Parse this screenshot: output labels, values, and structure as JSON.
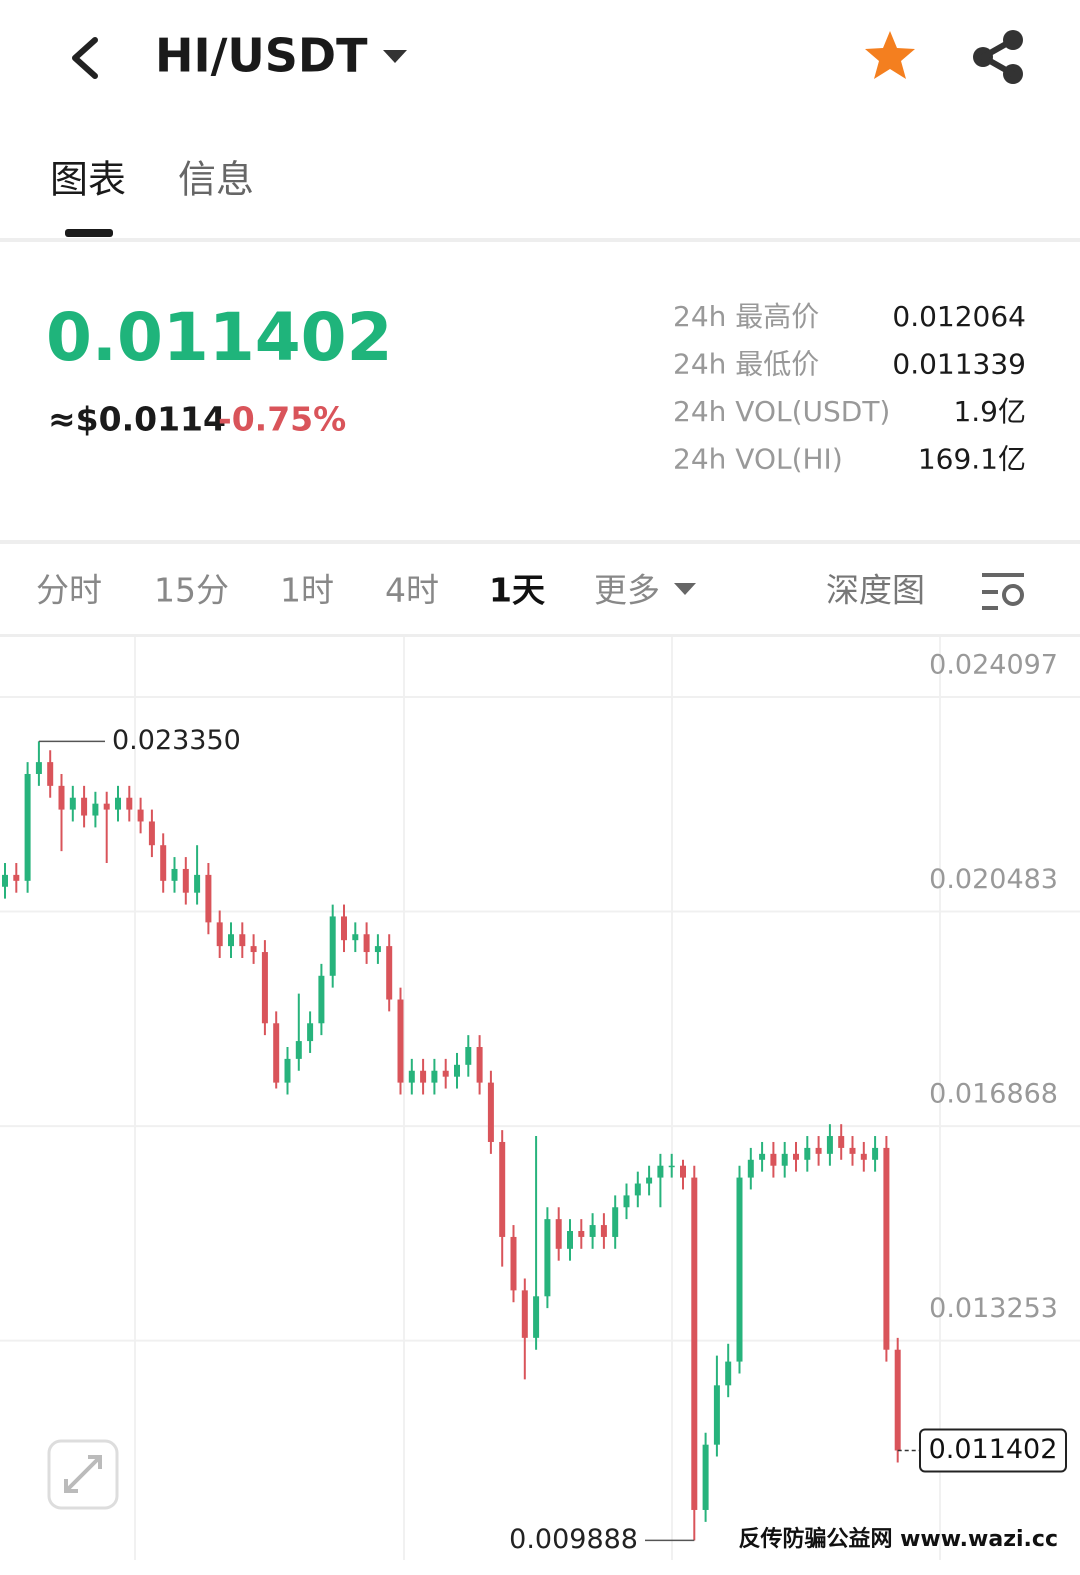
{
  "header": {
    "pair": "HI/USDT"
  },
  "tabs": [
    "图表",
    "信息"
  ],
  "price": {
    "last": "0.011402",
    "usd": "≈$0.0114",
    "change": "-0.75%"
  },
  "stats": [
    {
      "label": "24h 最高价",
      "value": "0.012064"
    },
    {
      "label": "24h 最低价",
      "value": "0.011339"
    },
    {
      "label": "24h VOL(USDT)",
      "value": "1.9亿"
    },
    {
      "label": "24h VOL(HI)",
      "value": "169.1亿"
    }
  ],
  "intervals": [
    "分时",
    "15分",
    "1时",
    "4时",
    "1天",
    "更多"
  ],
  "depth": "深度图",
  "watermark": "反传防骗公益网 www.wazi.cc",
  "chart_data": {
    "type": "candlestick",
    "open": [
      0.0209,
      0.0211,
      0.021,
      0.0228,
      0.023,
      0.0226,
      0.0222,
      0.0224,
      0.0221,
      0.0223,
      0.0222,
      0.0224,
      0.0222,
      0.022,
      0.0216,
      0.021,
      0.0212,
      0.0208,
      0.0211,
      0.0203,
      0.0199,
      0.0201,
      0.0199,
      0.0198,
      0.0186,
      0.0176,
      0.018,
      0.0183,
      0.0186,
      0.0194,
      0.0204,
      0.02,
      0.0201,
      0.0198,
      0.0199,
      0.019,
      0.0176,
      0.0178,
      0.0176,
      0.0178,
      0.0177,
      0.0179,
      0.0182,
      0.0176,
      0.0166,
      0.015,
      0.0141,
      0.0133,
      0.014,
      0.0153,
      0.0148,
      0.0151,
      0.015,
      0.0152,
      0.015,
      0.0155,
      0.0157,
      0.0159,
      0.016,
      0.0162,
      0.0162,
      0.016,
      0.0104,
      0.0115,
      0.0125,
      0.0129,
      0.016,
      0.0163,
      0.0164,
      0.0162,
      0.0164,
      0.0163,
      0.0165,
      0.0164,
      0.0167,
      0.0165,
      0.0164,
      0.0163,
      0.0165,
      0.0131
    ],
    "high": [
      0.0213,
      0.0213,
      0.023,
      0.02335,
      0.0232,
      0.0228,
      0.0226,
      0.0226,
      0.0225,
      0.0225,
      0.0226,
      0.0226,
      0.0224,
      0.0222,
      0.0218,
      0.0214,
      0.0214,
      0.0216,
      0.0213,
      0.0205,
      0.0203,
      0.0203,
      0.0201,
      0.02,
      0.0188,
      0.0182,
      0.0191,
      0.0188,
      0.0196,
      0.0206,
      0.0206,
      0.0203,
      0.0203,
      0.0201,
      0.0201,
      0.0192,
      0.018,
      0.018,
      0.018,
      0.018,
      0.0181,
      0.0184,
      0.0184,
      0.0178,
      0.0168,
      0.0152,
      0.0143,
      0.0167,
      0.0155,
      0.0155,
      0.0153,
      0.0153,
      0.0154,
      0.0154,
      0.0157,
      0.0159,
      0.0161,
      0.0162,
      0.0164,
      0.0164,
      0.0163,
      0.0162,
      0.0117,
      0.013,
      0.0132,
      0.0162,
      0.0165,
      0.0166,
      0.0166,
      0.0166,
      0.0166,
      0.0167,
      0.0167,
      0.0169,
      0.0169,
      0.0167,
      0.0166,
      0.0167,
      0.0167,
      0.0133
    ],
    "low": [
      0.0207,
      0.0208,
      0.0208,
      0.0226,
      0.0224,
      0.0215,
      0.022,
      0.0219,
      0.0219,
      0.0213,
      0.022,
      0.022,
      0.0218,
      0.0214,
      0.0208,
      0.0208,
      0.0206,
      0.0206,
      0.0201,
      0.0197,
      0.0197,
      0.0197,
      0.0196,
      0.0184,
      0.0175,
      0.0174,
      0.0178,
      0.0181,
      0.0184,
      0.0192,
      0.0198,
      0.0198,
      0.0196,
      0.0196,
      0.0188,
      0.0174,
      0.0174,
      0.0174,
      0.0174,
      0.0175,
      0.0175,
      0.0177,
      0.0174,
      0.0164,
      0.0145,
      0.0139,
      0.0126,
      0.0131,
      0.0138,
      0.0146,
      0.0146,
      0.0148,
      0.0148,
      0.0148,
      0.0148,
      0.0153,
      0.0155,
      0.0157,
      0.0155,
      0.016,
      0.0158,
      0.009888,
      0.0102,
      0.0113,
      0.0123,
      0.0127,
      0.0158,
      0.0161,
      0.016,
      0.016,
      0.0161,
      0.0161,
      0.0162,
      0.0162,
      0.0163,
      0.0162,
      0.0161,
      0.0161,
      0.0129,
      0.0112
    ],
    "close": [
      0.0211,
      0.021,
      0.0228,
      0.023,
      0.0226,
      0.0222,
      0.0224,
      0.0221,
      0.0223,
      0.0222,
      0.0224,
      0.0222,
      0.022,
      0.0216,
      0.021,
      0.0212,
      0.0208,
      0.0211,
      0.0203,
      0.0199,
      0.0201,
      0.0199,
      0.0198,
      0.0186,
      0.0176,
      0.018,
      0.0183,
      0.0186,
      0.0194,
      0.0204,
      0.02,
      0.0201,
      0.0198,
      0.0199,
      0.019,
      0.0176,
      0.0178,
      0.0176,
      0.0178,
      0.0177,
      0.0179,
      0.0182,
      0.0176,
      0.0166,
      0.015,
      0.0141,
      0.0133,
      0.014,
      0.0153,
      0.0148,
      0.0151,
      0.015,
      0.0152,
      0.015,
      0.0155,
      0.0157,
      0.0159,
      0.016,
      0.0162,
      0.0162,
      0.016,
      0.0104,
      0.0115,
      0.0125,
      0.0129,
      0.016,
      0.0163,
      0.0164,
      0.0162,
      0.0164,
      0.0163,
      0.0165,
      0.0164,
      0.0167,
      0.0165,
      0.0164,
      0.0163,
      0.0165,
      0.0131,
      0.011402
    ],
    "ylim": [
      0.009557,
      0.025108
    ],
    "yticks": [
      0.024097,
      0.020483,
      0.016868,
      0.013253
    ],
    "grid": true,
    "colors": {
      "up": "#27b37c",
      "down": "#d9545a"
    },
    "max_label": {
      "value": 0.02335,
      "label": "0.023350"
    },
    "min_label": 0.009888,
    "last_price": 0.011402
  }
}
